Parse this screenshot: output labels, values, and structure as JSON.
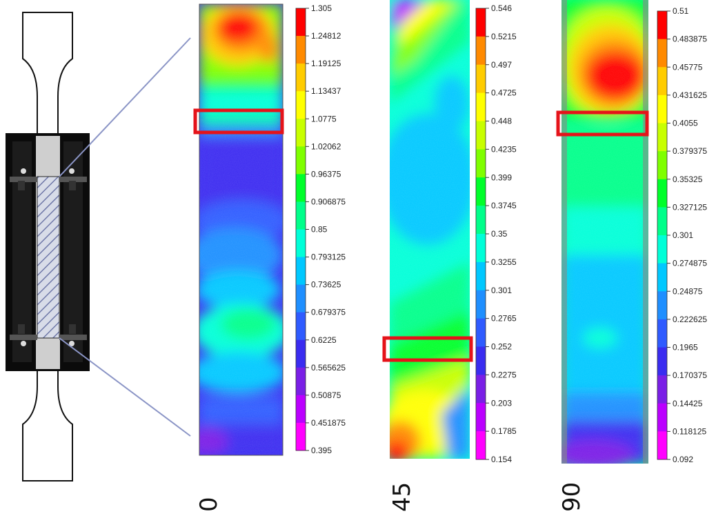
{
  "colorbar_colors": [
    "#ff00ff",
    "#bb00ff",
    "#7a1fe6",
    "#3a2cf0",
    "#2f5bff",
    "#1f8fff",
    "#00c8ff",
    "#00ffd8",
    "#00ff8a",
    "#00ff2a",
    "#7fff00",
    "#c8ff00",
    "#ffff00",
    "#ffcc00",
    "#ff8a00",
    "#ff0000"
  ],
  "panels": [
    {
      "angle_label": "0",
      "legend_ticks": [
        "1.305",
        "1.24812",
        "1.19125",
        "1.13437",
        "1.0775",
        "1.02062",
        "0.96375",
        "0.906875",
        "0.85",
        "0.793125",
        "0.73625",
        "0.679375",
        "0.6225",
        "0.565625",
        "0.50875",
        "0.451875",
        "0.395"
      ]
    },
    {
      "angle_label": "45",
      "legend_ticks": [
        "0.546",
        "0.5215",
        "0.497",
        "0.4725",
        "0.448",
        "0.4235",
        "0.399",
        "0.3745",
        "0.35",
        "0.3255",
        "0.301",
        "0.2765",
        "0.252",
        "0.2275",
        "0.203",
        "0.1785",
        "0.154"
      ]
    },
    {
      "angle_label": "90",
      "legend_ticks": [
        "0.51",
        "0.483875",
        "0.45775",
        "0.431625",
        "0.4055",
        "0.379375",
        "0.35325",
        "0.327125",
        "0.301",
        "0.274875",
        "0.24875",
        "0.222625",
        "0.1965",
        "0.170375",
        "0.14425",
        "0.118125",
        "0.092"
      ]
    }
  ]
}
